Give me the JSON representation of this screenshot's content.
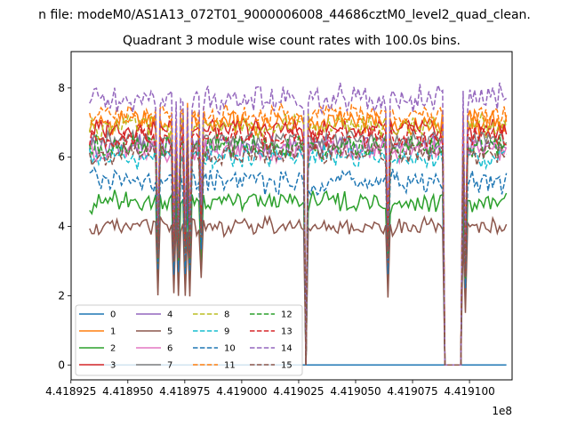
{
  "suptitle": "n file: modeM0/AS1A13_072T01_9000006008_44686cztM0_level2_quad_clean.",
  "chart_data": {
    "type": "line",
    "title": "Quadrant 3 module wise count rates with 100.0s bins.",
    "xlabel": "",
    "ylabel": "",
    "x_offset_label": "1e8",
    "xlim": [
      441892510,
      441911870
    ],
    "ylim": [
      -0.43,
      9.05
    ],
    "x_ticks": [
      441892500,
      441895000,
      441897500,
      441900000,
      441902500,
      441905000,
      441907500,
      441910000
    ],
    "x_tick_labels": [
      "4.418925",
      "4.418950",
      "4.418975",
      "4.419000",
      "4.419025",
      "4.419050",
      "4.419075",
      "4.419100"
    ],
    "y_ticks": [
      0,
      2,
      4,
      6,
      8
    ],
    "y_tick_labels": [
      "0",
      "2",
      "4",
      "6",
      "8"
    ],
    "legend_position": "lower-left",
    "legend_columns": 4,
    "x_start": 441893320,
    "x_step": 100,
    "n_points": 184,
    "gaps": [
      [
        441902760,
        441902850
      ],
      [
        441908880,
        441909620
      ]
    ],
    "dips": [
      [
        441896300,
        0.5
      ],
      [
        441897000,
        0.5
      ],
      [
        441897250,
        0.5
      ],
      [
        441897500,
        0.5
      ],
      [
        441897700,
        0.5
      ],
      [
        441898200,
        0.6
      ],
      [
        441906400,
        0.5
      ],
      [
        441909800,
        0.4
      ]
    ],
    "series": [
      {
        "name": "0",
        "color": "#1f77b4",
        "style": "solid",
        "mean": 0.0,
        "amp": 0.0
      },
      {
        "name": "1",
        "color": "#ff7f0e",
        "style": "solid",
        "mean": 7.0,
        "amp": 0.25
      },
      {
        "name": "2",
        "color": "#2ca02c",
        "style": "solid",
        "mean": 4.7,
        "amp": 0.25
      },
      {
        "name": "3",
        "color": "#d62728",
        "style": "solid",
        "mean": 6.8,
        "amp": 0.25
      },
      {
        "name": "4",
        "color": "#9467bd",
        "style": "solid",
        "mean": 6.3,
        "amp": 0.25
      },
      {
        "name": "5",
        "color": "#8c564b",
        "style": "solid",
        "mean": 4.0,
        "amp": 0.2
      },
      {
        "name": "6",
        "color": "#e377c2",
        "style": "solid",
        "mean": 6.2,
        "amp": 0.25
      },
      {
        "name": "7",
        "color": "#7f7f7f",
        "style": "solid",
        "mean": 6.5,
        "amp": 0.2
      },
      {
        "name": "8",
        "color": "#bcbd22",
        "style": "dashed",
        "mean": 6.9,
        "amp": 0.25
      },
      {
        "name": "9",
        "color": "#17becf",
        "style": "dashed",
        "mean": 6.0,
        "amp": 0.25
      },
      {
        "name": "10",
        "color": "#1f77b4",
        "style": "dashed",
        "mean": 5.3,
        "amp": 0.25
      },
      {
        "name": "11",
        "color": "#ff7f0e",
        "style": "dashed",
        "mean": 7.2,
        "amp": 0.25
      },
      {
        "name": "12",
        "color": "#2ca02c",
        "style": "dashed",
        "mean": 6.3,
        "amp": 0.25
      },
      {
        "name": "13",
        "color": "#d62728",
        "style": "dashed",
        "mean": 6.6,
        "amp": 0.25
      },
      {
        "name": "14",
        "color": "#9467bd",
        "style": "dashed",
        "mean": 7.7,
        "amp": 0.3
      },
      {
        "name": "15",
        "color": "#8c564b",
        "style": "dashed",
        "mean": 6.1,
        "amp": 0.25
      }
    ]
  }
}
